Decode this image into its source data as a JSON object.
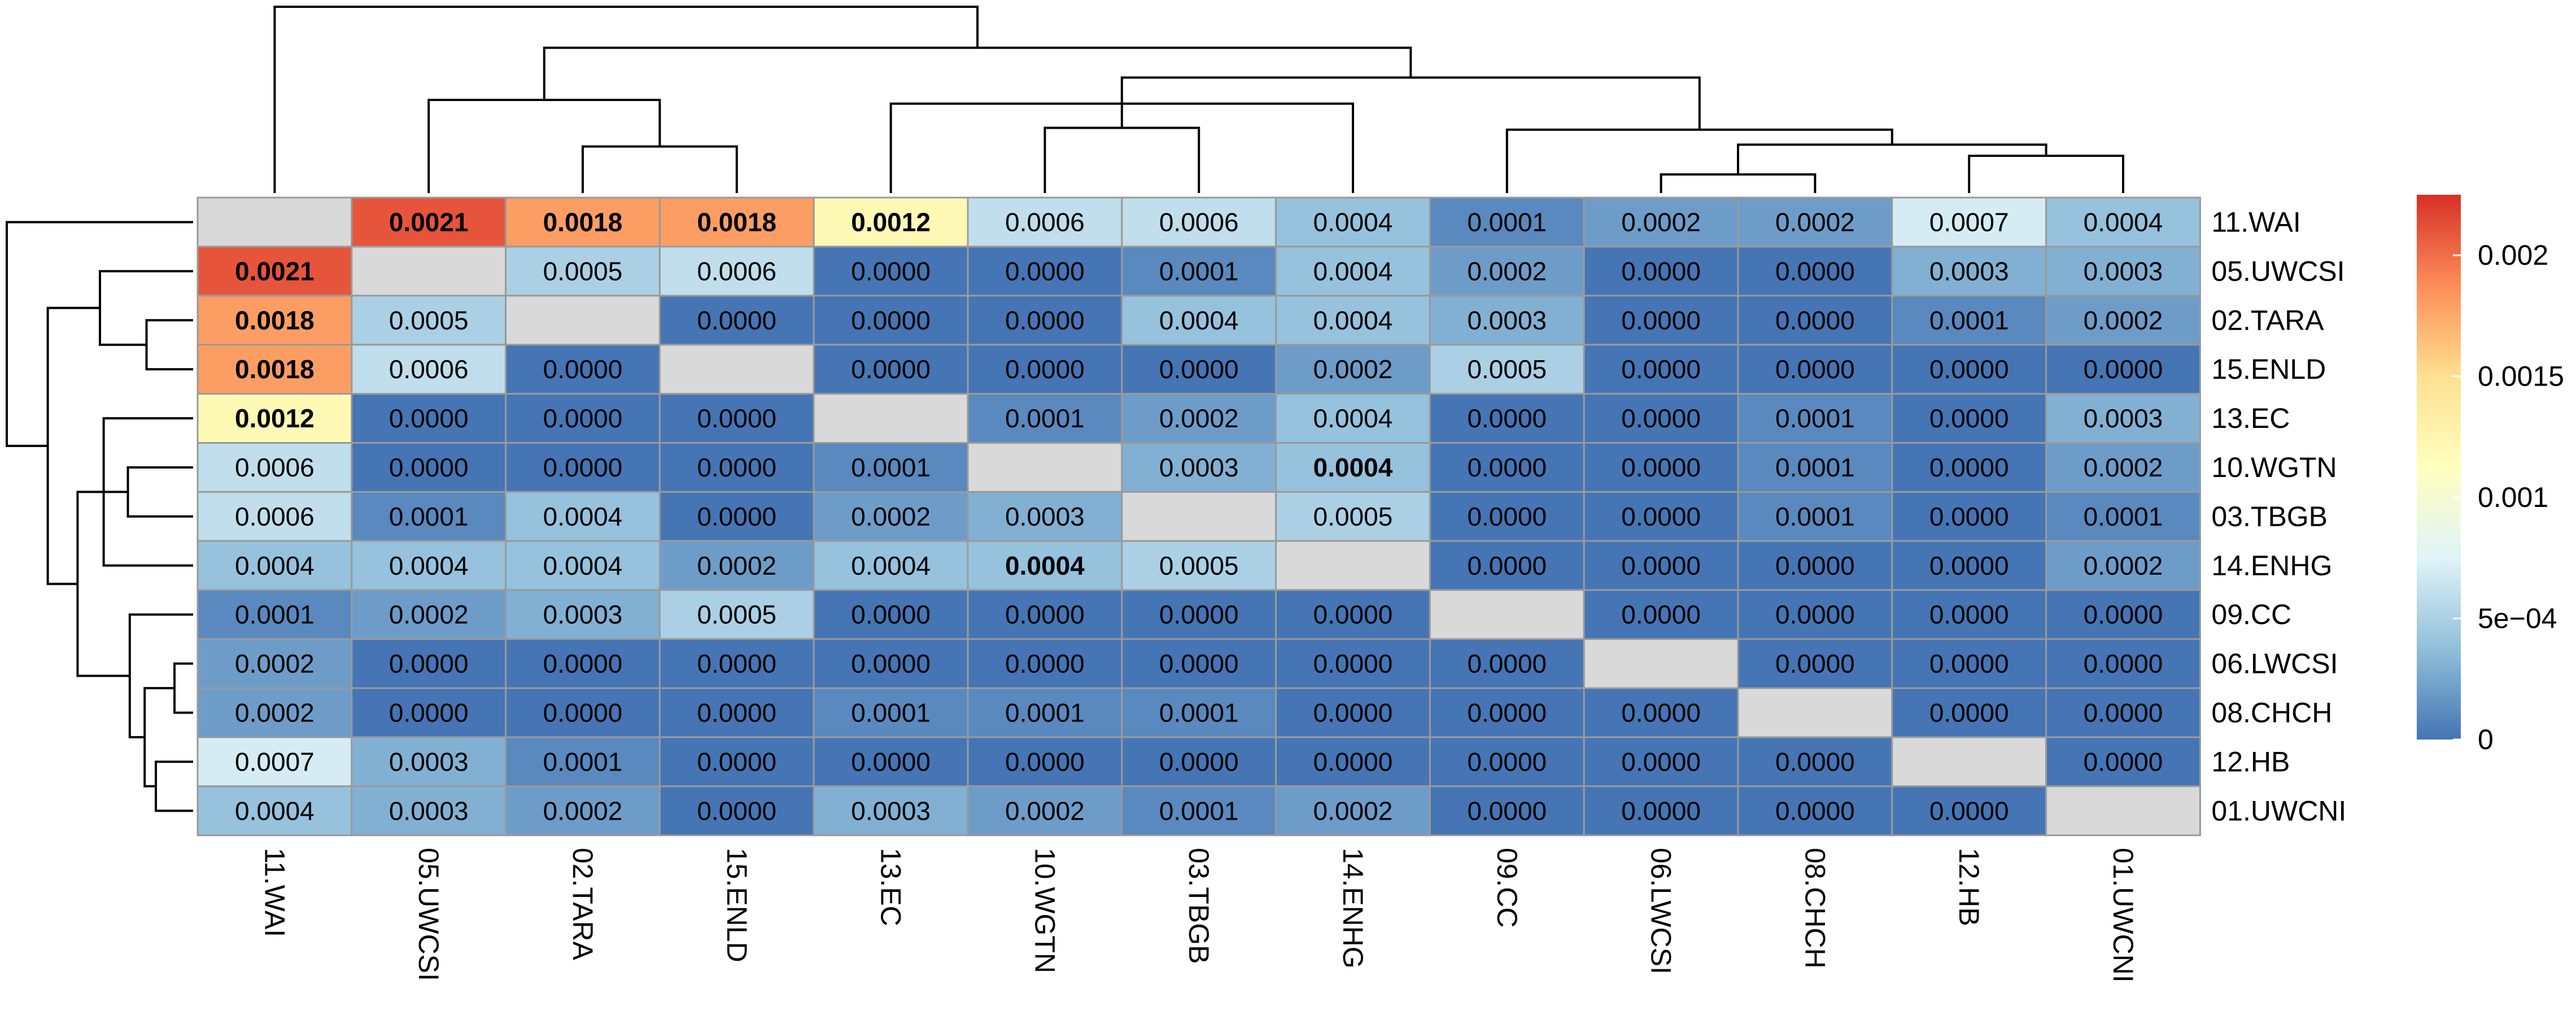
{
  "chart_data": {
    "type": "heatmap",
    "title": "",
    "labels": [
      "11.WAI",
      "05.UWCSI",
      "02.TARA",
      "15.ENLD",
      "13.EC",
      "10.WGTN",
      "03.TBGB",
      "14.ENHG",
      "09.CC",
      "06.LWCSI",
      "08.CHCH",
      "12.HB",
      "01.UWCNI"
    ],
    "values": [
      [
        null,
        "0.0021",
        "0.0018",
        "0.0018",
        "0.0012",
        "0.0006",
        "0.0006",
        "0.0004",
        "0.0001",
        "0.0002",
        "0.0002",
        "0.0007",
        "0.0004"
      ],
      [
        "0.0021",
        null,
        "0.0005",
        "0.0006",
        "0.0000",
        "0.0000",
        "0.0001",
        "0.0004",
        "0.0002",
        "0.0000",
        "0.0000",
        "0.0003",
        "0.0003"
      ],
      [
        "0.0018",
        "0.0005",
        null,
        "0.0000",
        "0.0000",
        "0.0000",
        "0.0004",
        "0.0004",
        "0.0003",
        "0.0000",
        "0.0000",
        "0.0001",
        "0.0002"
      ],
      [
        "0.0018",
        "0.0006",
        "0.0000",
        null,
        "0.0000",
        "0.0000",
        "0.0000",
        "0.0002",
        "0.0005",
        "0.0000",
        "0.0000",
        "0.0000",
        "0.0000"
      ],
      [
        "0.0012",
        "0.0000",
        "0.0000",
        "0.0000",
        null,
        "0.0001",
        "0.0002",
        "0.0004",
        "0.0000",
        "0.0000",
        "0.0001",
        "0.0000",
        "0.0003"
      ],
      [
        "0.0006",
        "0.0000",
        "0.0000",
        "0.0000",
        "0.0001",
        null,
        "0.0003",
        "0.0004",
        "0.0000",
        "0.0000",
        "0.0001",
        "0.0000",
        "0.0002"
      ],
      [
        "0.0006",
        "0.0001",
        "0.0004",
        "0.0000",
        "0.0002",
        "0.0003",
        null,
        "0.0005",
        "0.0000",
        "0.0000",
        "0.0001",
        "0.0000",
        "0.0001"
      ],
      [
        "0.0004",
        "0.0004",
        "0.0004",
        "0.0002",
        "0.0004",
        "0.0004",
        "0.0005",
        null,
        "0.0000",
        "0.0000",
        "0.0000",
        "0.0000",
        "0.0002"
      ],
      [
        "0.0001",
        "0.0002",
        "0.0003",
        "0.0005",
        "0.0000",
        "0.0000",
        "0.0000",
        "0.0000",
        null,
        "0.0000",
        "0.0000",
        "0.0000",
        "0.0000"
      ],
      [
        "0.0002",
        "0.0000",
        "0.0000",
        "0.0000",
        "0.0000",
        "0.0000",
        "0.0000",
        "0.0000",
        "0.0000",
        null,
        "0.0000",
        "0.0000",
        "0.0000"
      ],
      [
        "0.0002",
        "0.0000",
        "0.0000",
        "0.0000",
        "0.0001",
        "0.0001",
        "0.0001",
        "0.0000",
        "0.0000",
        "0.0000",
        null,
        "0.0000",
        "0.0000"
      ],
      [
        "0.0007",
        "0.0003",
        "0.0001",
        "0.0000",
        "0.0000",
        "0.0000",
        "0.0000",
        "0.0000",
        "0.0000",
        "0.0000",
        "0.0000",
        null,
        "0.0000"
      ],
      [
        "0.0004",
        "0.0003",
        "0.0002",
        "0.0000",
        "0.0003",
        "0.0002",
        "0.0001",
        "0.0002",
        "0.0000",
        "0.0000",
        "0.0000",
        "0.0000",
        null
      ]
    ],
    "bold_cells": [
      [
        0,
        1
      ],
      [
        0,
        2
      ],
      [
        0,
        3
      ],
      [
        0,
        4
      ],
      [
        1,
        0
      ],
      [
        2,
        0
      ],
      [
        3,
        0
      ],
      [
        4,
        0
      ],
      [
        5,
        7
      ],
      [
        7,
        5
      ]
    ],
    "scale": {
      "min": 0,
      "max": 0.00225
    },
    "color_stops": [
      "#4575b4",
      "#91bfdb",
      "#e0f3f8",
      "#ffffbf",
      "#fee090",
      "#fc8d59",
      "#d73027"
    ],
    "missing_color": "#d9d9d9",
    "legend": {
      "position": "right",
      "ticks": [
        {
          "value": 0.002,
          "label": "0.002"
        },
        {
          "value": 0.0015,
          "label": "0.0015"
        },
        {
          "value": 0.001,
          "label": "0.001"
        },
        {
          "value": 0.0005,
          "label": "5e−04"
        },
        {
          "value": 0,
          "label": "0"
        }
      ]
    },
    "dendrogram_merges": [
      {
        "a": 9,
        "b": 10,
        "height": 0.1
      },
      {
        "a": 11,
        "b": 12,
        "height": 0.2
      },
      {
        "a": 2,
        "b": 3,
        "height": 0.25
      },
      {
        "a": "c0",
        "b": "c1",
        "height": 0.26
      },
      {
        "a": 8,
        "b": "c3",
        "height": 0.34
      },
      {
        "a": 5,
        "b": 6,
        "height": 0.35
      },
      {
        "a": 4,
        "b": 7,
        "height": 0.48
      },
      {
        "a": "c5",
        "b": "c6",
        "height": 0.47
      },
      {
        "a": 1,
        "b": "c2",
        "height": 0.5
      },
      {
        "a": "c7",
        "b": "c4",
        "height": 0.62
      },
      {
        "a": "c9",
        "b": "c8",
        "height": 0.78
      },
      {
        "a": 0,
        "b": "c10",
        "height": 1.0
      }
    ]
  }
}
